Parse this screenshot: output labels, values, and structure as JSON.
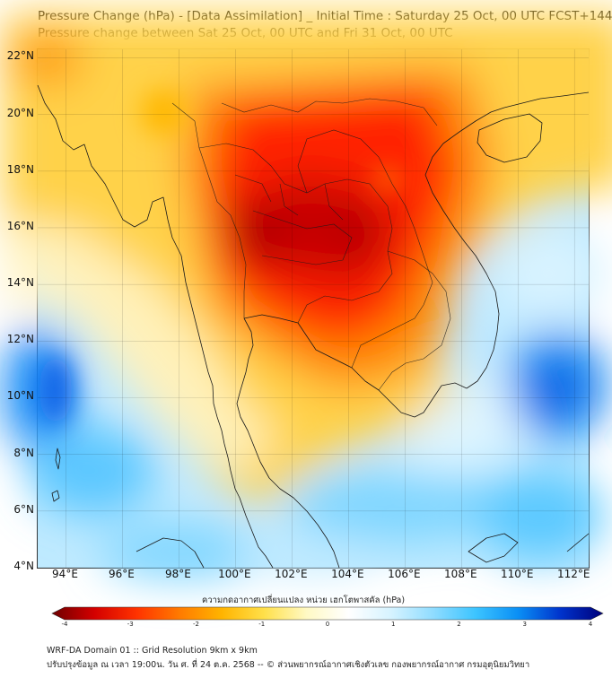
{
  "title_line1": "Pressure Change (hPa) - [Data Assimilation] _ Initial Time : Saturday 25 Oct, 00 UTC FCST+144",
  "title_line2": "Pressure change between Sat 25 Oct, 00 UTC and Fri 31 Oct, 00 UTC",
  "map": {
    "lat_labels": [
      "22°N",
      "20°N",
      "18°N",
      "16°N",
      "14°N",
      "12°N",
      "10°N",
      "8°N",
      "6°N",
      "4°N"
    ],
    "lon_labels": [
      "94°E",
      "96°E",
      "98°E",
      "100°E",
      "102°E",
      "104°E",
      "106°E",
      "108°E",
      "110°E",
      "112°E"
    ],
    "lat_range": [
      4,
      22.3
    ],
    "lon_range": [
      93,
      112.5
    ],
    "grid": true,
    "coastline_color": "#1a1a1a"
  },
  "colorbar": {
    "label": "ความกดอากาศเปลี่ยนแปลง หน่วย เฮกโตพาสคัล (hPa)",
    "min": -4,
    "max": 4,
    "tick_labels": [
      "-4",
      "-3",
      "-2",
      "-1",
      "0",
      "1",
      "2",
      "3",
      "4"
    ],
    "colors": [
      "#6e0000",
      "#d40000",
      "#ff3300",
      "#ff7a00",
      "#ffb400",
      "#ffe04a",
      "#fff9c4",
      "#ffffff",
      "#d6f3ff",
      "#8fdcff",
      "#3cc4ff",
      "#0a8ff5",
      "#0033cc",
      "#00007a"
    ]
  },
  "footer_line1": "WRF-DA Domain 01 :: Grid Resolution 9km x 9km",
  "footer_line2": "ปรับปรุงข้อมูล ณ เวลา 19:00น. วัน ศ. ที่ 24 ต.ค. 2568 -- © ส่วนพยากรณ์อากาศเชิงตัวเลข กองพยากรณ์อากาศ กรมอุตุนิยมวิทยา"
}
